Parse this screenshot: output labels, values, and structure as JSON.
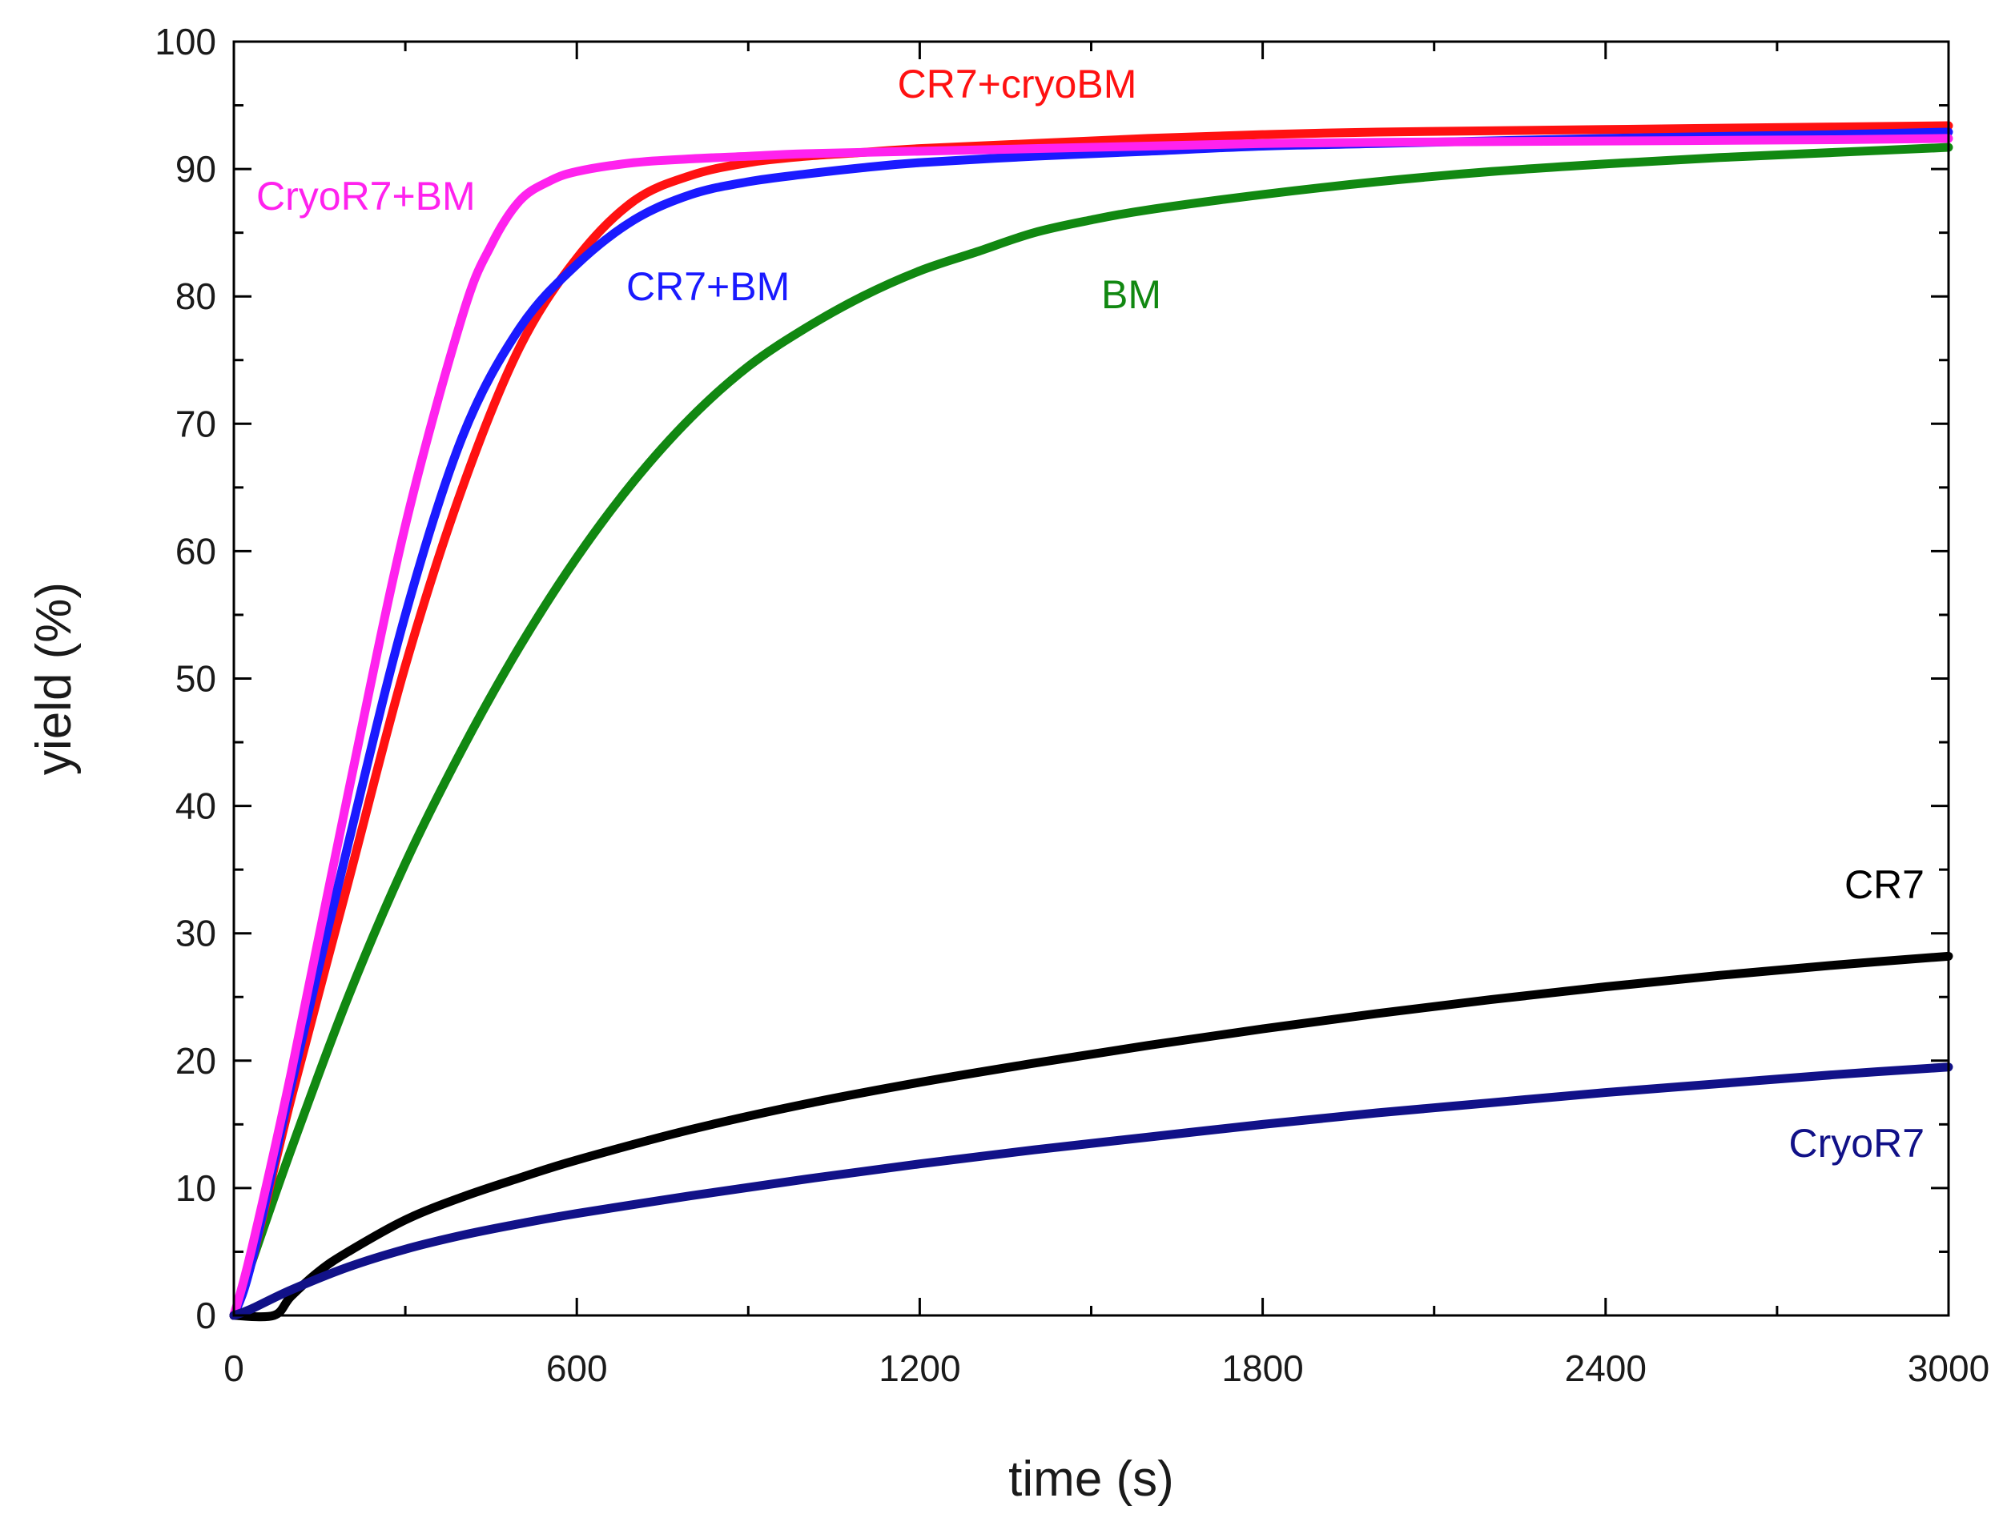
{
  "chart_data": {
    "type": "line",
    "title": "",
    "xlabel": "time (s)",
    "ylabel": "yield (%)",
    "xlim": [
      0,
      3000
    ],
    "ylim": [
      0,
      100
    ],
    "x_ticks": [
      0,
      600,
      1200,
      1800,
      2400,
      3000
    ],
    "y_ticks": [
      0,
      10,
      20,
      30,
      40,
      50,
      60,
      70,
      80,
      90,
      100
    ],
    "grid": false,
    "legend": "inline labels",
    "series": [
      {
        "name": "BM",
        "label": "BM",
        "color": "#118811",
        "x": [
          0,
          30,
          100,
          200,
          300,
          400,
          500,
          600,
          700,
          800,
          900,
          1000,
          1100,
          1200,
          1300,
          1400,
          1500,
          1600,
          1800,
          2000,
          2200,
          2400,
          2600,
          2800,
          3000
        ],
        "y": [
          0,
          4,
          13,
          25,
          35.5,
          44.5,
          52.5,
          59.5,
          65.5,
          70.5,
          74.5,
          77.5,
          80,
          82,
          83.5,
          85,
          86,
          86.8,
          88,
          89,
          89.8,
          90.4,
          90.9,
          91.3,
          91.7
        ]
      },
      {
        "name": "CR7+cryoBM",
        "label": "CR7+cryoBM",
        "color": "#ff1111",
        "x": [
          0,
          30,
          100,
          200,
          300,
          400,
          500,
          600,
          700,
          800,
          900,
          1000,
          1100,
          1200,
          1400,
          1600,
          1800,
          2000,
          2400,
          2800,
          3000
        ],
        "y": [
          0,
          4,
          17,
          34,
          51,
          65,
          76,
          83,
          87.5,
          89.5,
          90.5,
          91,
          91.3,
          91.6,
          92,
          92.4,
          92.7,
          92.9,
          93.1,
          93.3,
          93.4
        ]
      },
      {
        "name": "CR7+BM",
        "label": "CR7+BM",
        "color": "#1a1aff",
        "x": [
          0,
          30,
          100,
          200,
          300,
          400,
          500,
          600,
          700,
          800,
          900,
          1000,
          1100,
          1200,
          1400,
          1600,
          1800,
          2000,
          2400,
          2800,
          3000
        ],
        "y": [
          0,
          4,
          18,
          37,
          55,
          69,
          77.5,
          82.5,
          86,
          88,
          89,
          89.6,
          90.1,
          90.5,
          91,
          91.4,
          91.8,
          92,
          92.4,
          92.7,
          92.9
        ]
      },
      {
        "name": "CryoR7+BM",
        "label": "CryoR7+BM",
        "color": "#ff22ee",
        "x": [
          0,
          30,
          100,
          200,
          300,
          400,
          450,
          500,
          550,
          600,
          700,
          800,
          900,
          1000,
          1200,
          1400,
          1600,
          1800,
          2000,
          2400,
          2800,
          3000
        ],
        "y": [
          0,
          5,
          19,
          41,
          62,
          78.5,
          84,
          87.5,
          89,
          89.8,
          90.5,
          90.8,
          91,
          91.2,
          91.4,
          91.6,
          91.8,
          92,
          92.1,
          92.2,
          92.3,
          92.4
        ]
      },
      {
        "name": "CR7",
        "label": "CR7",
        "color": "#000000",
        "x": [
          0,
          70,
          100,
          150,
          200,
          300,
          400,
          500,
          600,
          800,
          1000,
          1200,
          1400,
          1600,
          1800,
          2000,
          2200,
          2400,
          2600,
          2800,
          3000
        ],
        "y": [
          0,
          0,
          1.5,
          3.5,
          5,
          7.5,
          9.3,
          10.8,
          12.2,
          14.6,
          16.6,
          18.3,
          19.8,
          21.2,
          22.5,
          23.7,
          24.8,
          25.8,
          26.7,
          27.5,
          28.2
        ]
      },
      {
        "name": "CryoR7",
        "label": "CryoR7",
        "color": "#111188",
        "x": [
          0,
          30,
          100,
          200,
          300,
          400,
          500,
          600,
          800,
          1000,
          1200,
          1400,
          1600,
          1800,
          2000,
          2200,
          2400,
          2600,
          2800,
          3000
        ],
        "y": [
          0,
          0.5,
          2,
          3.8,
          5.2,
          6.3,
          7.2,
          8,
          9.4,
          10.7,
          11.9,
          13,
          14,
          15,
          15.9,
          16.7,
          17.5,
          18.2,
          18.9,
          19.5
        ]
      }
    ]
  }
}
